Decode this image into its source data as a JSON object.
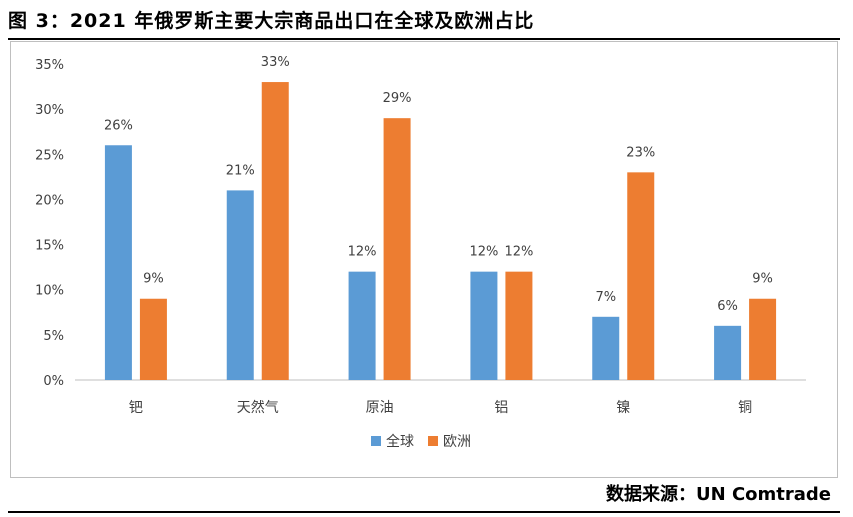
{
  "figure": {
    "title": "图 3：2021 年俄罗斯主要大宗商品出口在全球及欧洲占比",
    "source": "数据来源：UN Comtrade"
  },
  "chart_data": {
    "type": "bar",
    "categories": [
      "钯",
      "天然气",
      "原油",
      "铝",
      "镍",
      "铜"
    ],
    "series": [
      {
        "name": "全球",
        "values": [
          26,
          21,
          12,
          12,
          7,
          6
        ],
        "color": "#5b9bd5"
      },
      {
        "name": "欧洲",
        "values": [
          9,
          33,
          29,
          12,
          23,
          9
        ],
        "color": "#ed7d31"
      }
    ],
    "value_format": "percent",
    "ylim": [
      0,
      35
    ],
    "yticks": [
      "0%",
      "5%",
      "10%",
      "15%",
      "20%",
      "25%",
      "30%",
      "35%"
    ],
    "grid": false,
    "legend_position": "bottom",
    "xlabel": "",
    "ylabel": ""
  }
}
